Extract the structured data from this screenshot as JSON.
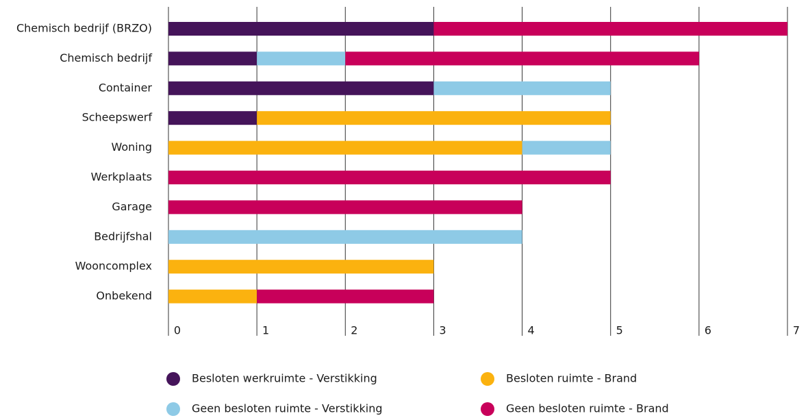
{
  "chart_data": {
    "type": "stacked-barh",
    "categories": [
      "Chemisch bedrijf (BRZO)",
      "Chemisch bedrijf",
      "Container",
      "Scheepswerf",
      "Woning",
      "Werkplaats",
      "Garage",
      "Bedrijfshal",
      "Wooncomplex",
      "Onbekend"
    ],
    "series": [
      {
        "name": "Besloten werkruimte - Verstikking",
        "color": "#45145a",
        "values": [
          3,
          1,
          3,
          1,
          0,
          0,
          0,
          0,
          0,
          0
        ]
      },
      {
        "name": "Besloten ruimte - Brand",
        "color": "#fbb20f",
        "values": [
          0,
          0,
          0,
          4,
          4,
          0,
          0,
          0,
          3,
          1
        ]
      },
      {
        "name": "Geen besloten ruimte - Verstikking",
        "color": "#8ecae6",
        "values": [
          0,
          1,
          2,
          0,
          1,
          0,
          0,
          4,
          0,
          0
        ]
      },
      {
        "name": "Geen besloten ruimte - Brand",
        "color": "#c8005a",
        "values": [
          4,
          4,
          0,
          0,
          0,
          5,
          4,
          0,
          0,
          2
        ]
      }
    ],
    "xlim": [
      0,
      7
    ],
    "xticks": [
      0,
      1,
      2,
      3,
      4,
      5,
      6,
      7
    ],
    "grid": true
  }
}
